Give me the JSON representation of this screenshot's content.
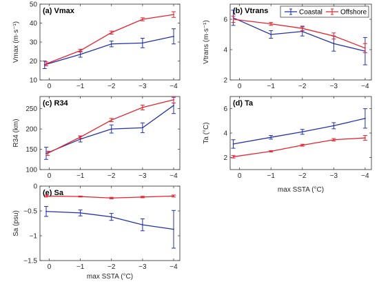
{
  "chart_data": [
    {
      "panel_id": "a",
      "type": "line",
      "title": "(a) Vmax",
      "ylabel": "Vmax (m·s⁻¹)",
      "xlabel": "",
      "x": [
        0,
        -1,
        -2,
        -3,
        -4
      ],
      "xticks": [
        "0",
        "−1",
        "−2",
        "−3",
        "−4"
      ],
      "xlim": [
        0.3,
        -4.2
      ],
      "ylim": [
        10,
        50
      ],
      "yticks": [
        10,
        20,
        30,
        40,
        50
      ],
      "ytick_labels": [
        "10",
        "20",
        "30",
        "40",
        "50"
      ],
      "series": [
        {
          "name": "Coastal",
          "color": "#1f2fb4",
          "x": [
            0.15,
            -1,
            -2,
            -3,
            -4
          ],
          "y": [
            18,
            23.5,
            29,
            29.5,
            33
          ],
          "err": [
            2,
            1.5,
            1.5,
            2.5,
            4
          ]
        },
        {
          "name": "Offshore",
          "color": "#e8202a",
          "x": [
            0.1,
            -1,
            -2,
            -3,
            -4
          ],
          "y": [
            18.5,
            25.5,
            35,
            42,
            44.5
          ],
          "err": [
            1,
            0.7,
            0.8,
            0.8,
            1.5
          ]
        }
      ],
      "legend": null
    },
    {
      "panel_id": "b",
      "type": "line",
      "title": "(b) Vtrans",
      "ylabel": "Vtrans (m·s⁻¹)",
      "xlabel": "",
      "x": [
        0,
        -1,
        -2,
        -3,
        -4
      ],
      "xticks": [
        "0",
        "−1",
        "−2",
        "−3",
        "−4"
      ],
      "xlim": [
        0.3,
        -4.2
      ],
      "ylim": [
        2,
        7
      ],
      "yticks": [
        2,
        4,
        6
      ],
      "ytick_labels": [
        "2",
        "4",
        "6"
      ],
      "series": [
        {
          "name": "Coastal",
          "color": "#1f2fb4",
          "x": [
            0.2,
            -1,
            -2,
            -3,
            -4
          ],
          "y": [
            6.1,
            5,
            5.2,
            4.4,
            3.9
          ],
          "err": [
            0.5,
            0.25,
            0.3,
            0.5,
            0.9
          ]
        },
        {
          "name": "Offshore",
          "color": "#e8202a",
          "x": [
            0.2,
            -1,
            -2,
            -3,
            -4
          ],
          "y": [
            6,
            5.7,
            5.4,
            4.9,
            4.1
          ],
          "err": [
            0.2,
            0.1,
            0.15,
            0.2,
            0.3
          ]
        }
      ],
      "legend": {
        "position": "top-right",
        "entries": [
          "Coastal",
          "Offshore"
        ]
      }
    },
    {
      "panel_id": "c",
      "type": "line",
      "title": "(c) R34",
      "ylabel": "R34 (km)",
      "xlabel": "",
      "x": [
        0,
        -1,
        -2,
        -3,
        -4
      ],
      "xticks": [
        "0",
        "−1",
        "−2",
        "−3",
        "−4"
      ],
      "xlim": [
        0.3,
        -4.2
      ],
      "ylim": [
        100,
        280
      ],
      "yticks": [
        100,
        150,
        200,
        250
      ],
      "ytick_labels": [
        "100",
        "150",
        "200",
        "250"
      ],
      "series": [
        {
          "name": "Coastal",
          "color": "#1f2fb4",
          "x": [
            0.1,
            -1,
            -2,
            -3,
            -4
          ],
          "y": [
            140,
            175,
            200,
            203,
            258
          ],
          "err": [
            15,
            7,
            10,
            12,
            20
          ]
        },
        {
          "name": "Offshore",
          "color": "#e8202a",
          "x": [
            0.05,
            -1,
            -2,
            -3,
            -4
          ],
          "y": [
            140,
            180,
            222,
            253,
            272
          ],
          "err": [
            5,
            3,
            4,
            6,
            8
          ]
        }
      ],
      "legend": null
    },
    {
      "panel_id": "d",
      "type": "line",
      "title": "(d) Ta",
      "ylabel": "Ta (°C)",
      "xlabel": "max SSTA (°C)",
      "x": [
        0,
        -1,
        -2,
        -3,
        -4
      ],
      "xticks": [
        "0",
        "−1",
        "−2",
        "−3",
        "−4"
      ],
      "xlim": [
        0.3,
        -4.2
      ],
      "ylim": [
        1,
        7
      ],
      "yticks": [
        2,
        4,
        6
      ],
      "ytick_labels": [
        "2",
        "4",
        "6"
      ],
      "series": [
        {
          "name": "Coastal",
          "color": "#1f2fb4",
          "x": [
            0.2,
            -1,
            -2,
            -3,
            -4
          ],
          "y": [
            3.1,
            3.65,
            4.1,
            4.6,
            5.2
          ],
          "err": [
            0.35,
            0.15,
            0.2,
            0.25,
            0.8
          ]
        },
        {
          "name": "Offshore",
          "color": "#e8202a",
          "x": [
            0.2,
            -1,
            -2,
            -3,
            -4
          ],
          "y": [
            2.05,
            2.5,
            3.0,
            3.45,
            3.6
          ],
          "err": [
            0.1,
            0.05,
            0.08,
            0.1,
            0.2
          ]
        }
      ],
      "legend": null
    },
    {
      "panel_id": "e",
      "type": "line",
      "title": "(e) Sa",
      "ylabel": "Sa (psu)",
      "xlabel": "max SSTA (°C)",
      "x": [
        0,
        -1,
        -2,
        -3,
        -4
      ],
      "xticks": [
        "0",
        "−1",
        "−2",
        "−3",
        "−4"
      ],
      "xlim": [
        0.3,
        -4.2
      ],
      "ylim": [
        -1.5,
        0
      ],
      "yticks": [
        -1.5,
        -1,
        -0.5,
        0
      ],
      "ytick_labels": [
        "−1.5",
        "−1",
        "−0.5",
        "0"
      ],
      "series": [
        {
          "name": "Coastal",
          "color": "#1f2fb4",
          "x": [
            0.1,
            -1,
            -2,
            -3,
            -4
          ],
          "y": [
            -0.51,
            -0.54,
            -0.62,
            -0.78,
            -0.87
          ],
          "err": [
            0.1,
            0.06,
            0.07,
            0.12,
            0.38
          ]
        },
        {
          "name": "Offshore",
          "color": "#e8202a",
          "x": [
            0.1,
            -1,
            -2,
            -3,
            -4
          ],
          "y": [
            -0.2,
            -0.21,
            -0.24,
            -0.22,
            -0.2
          ],
          "err": [
            0.02,
            0.01,
            0.015,
            0.015,
            0.02
          ]
        }
      ],
      "legend": null
    }
  ]
}
